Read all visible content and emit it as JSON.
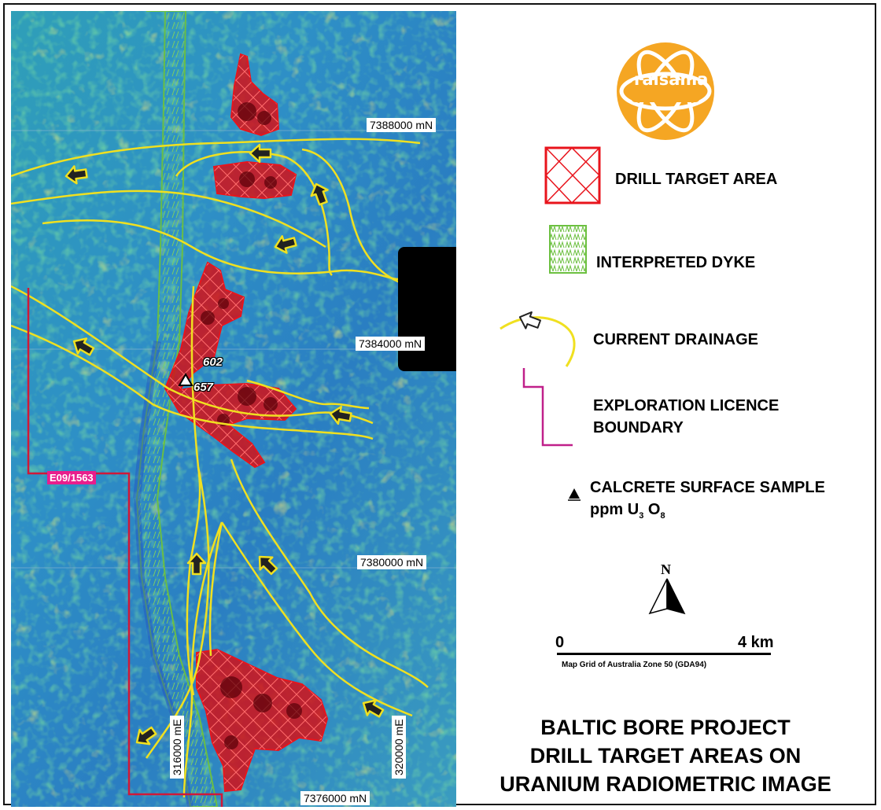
{
  "logo": {
    "text": "raisama"
  },
  "grid_labels": {
    "n1": "7388000 mN",
    "n2": "7384000 mN",
    "n3": "7380000 mN",
    "n4": "7376000 mN",
    "e1": "316000 mE",
    "e2": "320000 mE"
  },
  "licence_id": "E09/1563",
  "samples": {
    "a": "602",
    "b": "657"
  },
  "legend": {
    "drill_target": "DRILL TARGET AREA",
    "dyke": "INTERPRETED DYKE",
    "drainage": "CURRENT DRAINAGE",
    "licence_line1": "EXPLORATION LICENCE",
    "licence_line2": "BOUNDARY",
    "sample_line1": "CALCRETE SURFACE SAMPLE",
    "sample_unit_prefix": "ppm  U",
    "sample_unit_sub1": "3",
    "sample_unit_mid": " O",
    "sample_unit_sub2": "8"
  },
  "north": "N",
  "scale": {
    "start": "0",
    "end": "4 km",
    "grid_note": "Map Grid of Australia Zone 50 (GDA94)"
  },
  "title": {
    "line1": "BALTIC BORE PROJECT",
    "line2": "DRILL TARGET AREAS ON",
    "line3": "URANIUM RADIOMETRIC IMAGE"
  },
  "colors": {
    "drill_target": "#e8141c",
    "dyke": "#6cc040",
    "drainage": "#f0e020",
    "licence": "#c0208a",
    "logo": "#f5a623"
  }
}
